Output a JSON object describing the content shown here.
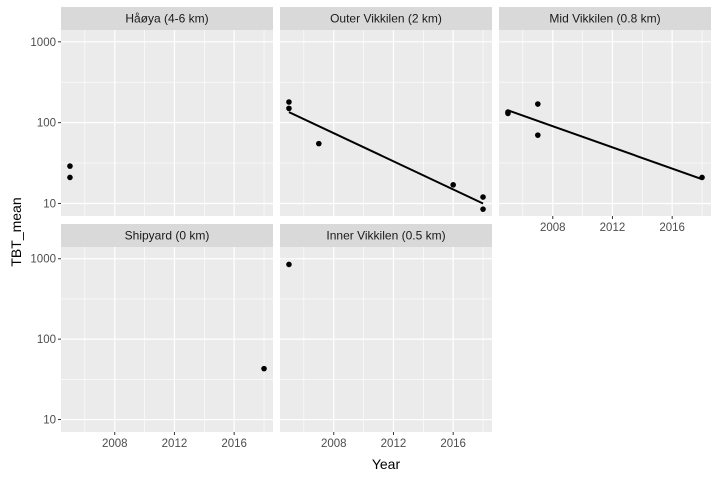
{
  "chart_data": {
    "type": "scatter",
    "xlabel": "Year",
    "ylabel": "TBT_mean",
    "y_scale": "log10",
    "ylim": [
      7,
      1400
    ],
    "xlim": [
      2004.4,
      2018.6
    ],
    "x_ticks": [
      2008,
      2012,
      2016
    ],
    "y_ticks": [
      10,
      100,
      1000
    ],
    "grid": true,
    "facet_layout": {
      "rows": 2,
      "cols": 3,
      "x_axis_shown_on": "bottom of each column"
    },
    "panels": [
      {
        "title": "Håøya (4-6 km)",
        "points": [
          {
            "x": 2005,
            "y": 29
          },
          {
            "x": 2005,
            "y": 21
          }
        ],
        "trend": null
      },
      {
        "title": "Outer Vikkilen (2 km)",
        "points": [
          {
            "x": 2005,
            "y": 180
          },
          {
            "x": 2005,
            "y": 150
          },
          {
            "x": 2007,
            "y": 55
          },
          {
            "x": 2016,
            "y": 17
          },
          {
            "x": 2018,
            "y": 12
          },
          {
            "x": 2018,
            "y": 8.5
          }
        ],
        "trend": {
          "x": [
            2005,
            2018
          ],
          "y": [
            135,
            10
          ]
        }
      },
      {
        "title": "Mid Vikkilen (0.8 km)",
        "points": [
          {
            "x": 2005,
            "y": 130
          },
          {
            "x": 2005,
            "y": 135
          },
          {
            "x": 2007,
            "y": 170
          },
          {
            "x": 2007,
            "y": 70
          },
          {
            "x": 2018,
            "y": 21
          }
        ],
        "trend": {
          "x": [
            2005,
            2018
          ],
          "y": [
            142,
            20
          ]
        }
      },
      {
        "title": "Shipyard (0 km)",
        "points": [
          {
            "x": 2018,
            "y": 43
          }
        ],
        "trend": null
      },
      {
        "title": "Inner Vikkilen (0.5 km)",
        "points": [
          {
            "x": 2005,
            "y": 850
          }
        ],
        "trend": null
      }
    ]
  },
  "colors": {
    "panel_background": "#ebebeb",
    "strip_background": "#d9d9d9",
    "grid_major": "#ffffff",
    "point": "#000000",
    "trend_line": "#000000"
  }
}
